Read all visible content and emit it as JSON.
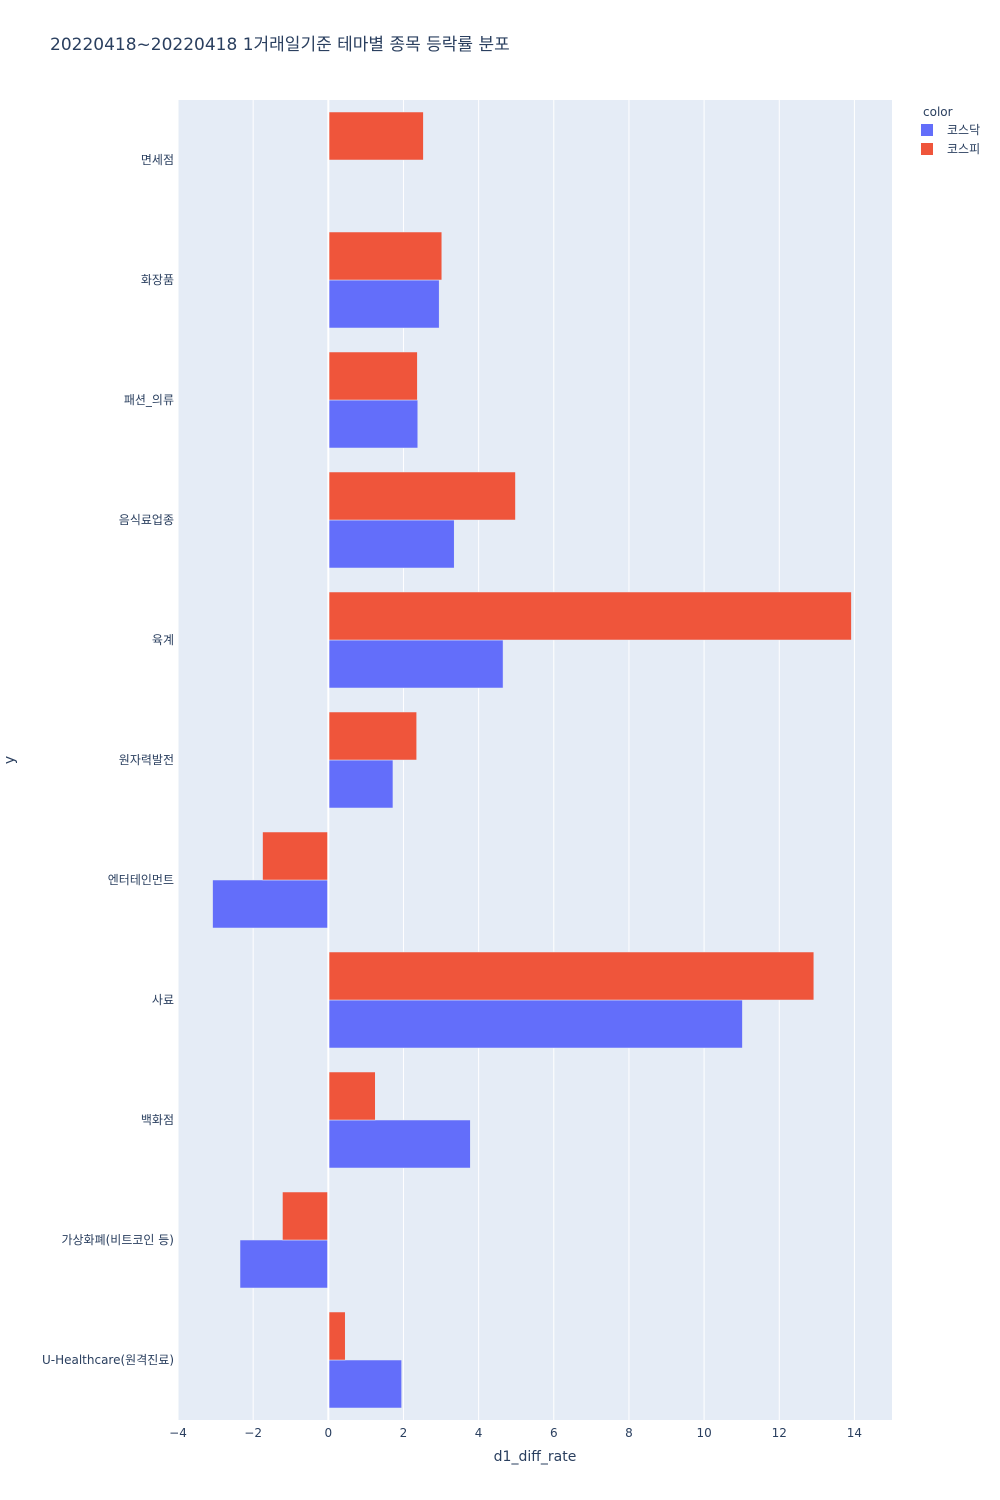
{
  "chart_data": {
    "type": "bar",
    "orientation": "horizontal",
    "title": "20220418~20220418 1거래일기준 테마별 종목 등락률 분포",
    "xlabel": "d1_diff_rate",
    "ylabel": "y",
    "xlim": [
      -4,
      15
    ],
    "xticks": [
      -4,
      -2,
      0,
      2,
      4,
      6,
      8,
      10,
      12,
      14
    ],
    "xtick_labels": [
      "−4",
      "−2",
      "0",
      "2",
      "4",
      "6",
      "8",
      "10",
      "12",
      "14"
    ],
    "categories": [
      "면세점",
      "화장품",
      "패션_의류",
      "음식료업종",
      "육계",
      "원자력발전",
      "엔터테인먼트",
      "사료",
      "백화점",
      "가상화폐(비트코인 등)",
      "U-Healthcare(원격진료)"
    ],
    "legend_title": "color",
    "legend_position": "top-right",
    "grid": true,
    "series": [
      {
        "name": "코스닥",
        "color": "#636efa",
        "values": [
          null,
          2.95,
          2.38,
          3.35,
          4.65,
          1.72,
          -3.08,
          11.02,
          3.78,
          -2.35,
          1.95
        ]
      },
      {
        "name": "코스피",
        "color": "#ef553b",
        "values": [
          2.53,
          3.02,
          2.37,
          4.98,
          13.92,
          2.35,
          -1.75,
          12.92,
          1.25,
          -1.22,
          0.45
        ]
      }
    ]
  }
}
